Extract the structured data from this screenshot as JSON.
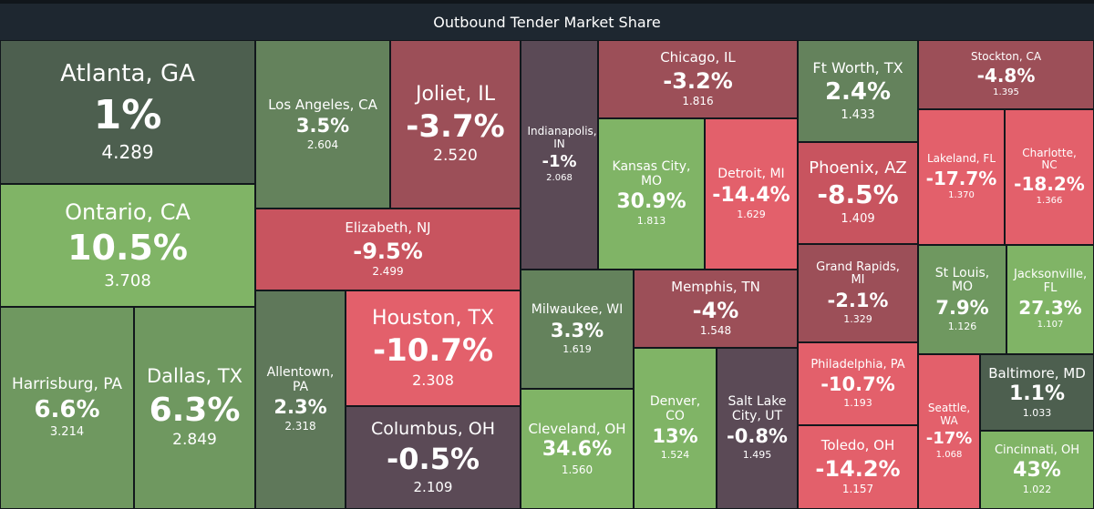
{
  "header": {
    "title": "Outbound Tender Market Share"
  },
  "colors": {
    "dark_green": "#4d5f4f",
    "mid_green": "#6c8a5f",
    "light_green": "#80b466",
    "dark_purple": "#5b4a56",
    "dark_red": "#9c4f58",
    "mid_red": "#c8545f",
    "bright_red": "#e3606b"
  },
  "chart_data": {
    "type": "treemap",
    "title": "Outbound Tender Market Share",
    "items": [
      {
        "name": "Atlanta, GA",
        "pct": "1%",
        "value": "4.289",
        "color": "#4d5f4f"
      },
      {
        "name": "Ontario, CA",
        "pct": "10.5%",
        "value": "3.708",
        "color": "#80b466"
      },
      {
        "name": "Harrisburg, PA",
        "pct": "6.6%",
        "value": "3.214",
        "color": "#6f9860"
      },
      {
        "name": "Dallas, TX",
        "pct": "6.3%",
        "value": "2.849",
        "color": "#6f9860"
      },
      {
        "name": "Los Angeles, CA",
        "pct": "3.5%",
        "value": "2.604",
        "color": "#64825c"
      },
      {
        "name": "Joliet, IL",
        "pct": "-3.7%",
        "value": "2.520",
        "color": "#9c4f58"
      },
      {
        "name": "Elizabeth, NJ",
        "pct": "-9.5%",
        "value": "2.499",
        "color": "#c8545f"
      },
      {
        "name": "Allentown, PA",
        "pct": "2.3%",
        "value": "2.318",
        "color": "#5f785a"
      },
      {
        "name": "Houston, TX",
        "pct": "-10.7%",
        "value": "2.308",
        "color": "#e3606b"
      },
      {
        "name": "Columbus, OH",
        "pct": "-0.5%",
        "value": "2.109",
        "color": "#5b4a56"
      },
      {
        "name": "Indianapolis, IN",
        "pct": "-1%",
        "value": "2.068",
        "color": "#5b4a56"
      },
      {
        "name": "Kansas City, MO",
        "pct": "30.9%",
        "value": "1.813",
        "color": "#80b466"
      },
      {
        "name": "Milwaukee, WI",
        "pct": "3.3%",
        "value": "1.619",
        "color": "#64825c"
      },
      {
        "name": "Cleveland, OH",
        "pct": "34.6%",
        "value": "1.560",
        "color": "#80b466"
      },
      {
        "name": "Chicago, IL",
        "pct": "-3.2%",
        "value": "1.816",
        "color": "#9c4f58"
      },
      {
        "name": "Detroit, MI",
        "pct": "-14.4%",
        "value": "1.629",
        "color": "#e3606b"
      },
      {
        "name": "Memphis, TN",
        "pct": "-4%",
        "value": "1.548",
        "color": "#9c4f58"
      },
      {
        "name": "Denver, CO",
        "pct": "13%",
        "value": "1.524",
        "color": "#80b466"
      },
      {
        "name": "Salt Lake City, UT",
        "pct": "-0.8%",
        "value": "1.495",
        "color": "#5b4a56"
      },
      {
        "name": "Ft Worth, TX",
        "pct": "2.4%",
        "value": "1.433",
        "color": "#64825c"
      },
      {
        "name": "Phoenix, AZ",
        "pct": "-8.5%",
        "value": "1.409",
        "color": "#c8545f"
      },
      {
        "name": "Grand Rapids, MI",
        "pct": "-2.1%",
        "value": "1.329",
        "color": "#9c4f58"
      },
      {
        "name": "Philadelphia, PA",
        "pct": "-10.7%",
        "value": "1.193",
        "color": "#e3606b"
      },
      {
        "name": "Toledo, OH",
        "pct": "-14.2%",
        "value": "1.157",
        "color": "#e3606b"
      },
      {
        "name": "Stockton, CA",
        "pct": "-4.8%",
        "value": "1.395",
        "color": "#9c4f58"
      },
      {
        "name": "Lakeland, FL",
        "pct": "-17.7%",
        "value": "1.370",
        "color": "#e3606b"
      },
      {
        "name": "Charlotte, NC",
        "pct": "-18.2%",
        "value": "1.366",
        "color": "#e3606b"
      },
      {
        "name": "St Louis, MO",
        "pct": "7.9%",
        "value": "1.126",
        "color": "#6f9860"
      },
      {
        "name": "Jacksonville, FL",
        "pct": "27.3%",
        "value": "1.107",
        "color": "#80b466"
      },
      {
        "name": "Seattle, WA",
        "pct": "-17%",
        "value": "1.068",
        "color": "#e3606b"
      },
      {
        "name": "Baltimore, MD",
        "pct": "1.1%",
        "value": "1.033",
        "color": "#4d5f4f"
      },
      {
        "name": "Cincinnati, OH",
        "pct": "43%",
        "value": "1.022",
        "color": "#80b466"
      }
    ]
  }
}
